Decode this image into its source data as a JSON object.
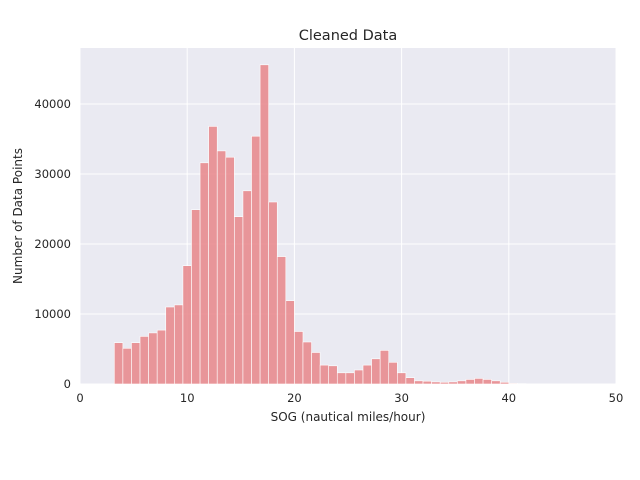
{
  "chart_data": {
    "type": "bar",
    "title": "Cleaned Data",
    "xlabel": "SOG (nautical miles/hour)",
    "ylabel": "Number of Data Points",
    "xlim": [
      0,
      50
    ],
    "ylim": [
      0,
      48000
    ],
    "xticks": [
      0,
      10,
      20,
      30,
      40,
      50
    ],
    "yticks": [
      0,
      10000,
      20000,
      30000,
      40000
    ],
    "grid": true,
    "colors": {
      "bar": "#e8868a",
      "background": "#eaeaf2",
      "grid": "#ffffff",
      "text": "#262626"
    },
    "bin_width": 0.8,
    "bins_start": [
      3.2,
      4.0,
      4.8,
      5.6,
      6.4,
      7.2,
      8.0,
      8.8,
      9.6,
      10.4,
      11.2,
      12.0,
      12.8,
      13.6,
      14.4,
      15.2,
      16.0,
      16.8,
      17.6,
      18.4,
      19.2,
      20.0,
      20.8,
      21.6,
      22.4,
      23.2,
      24.0,
      24.8,
      25.6,
      26.4,
      27.2,
      28.0,
      28.8,
      29.6,
      30.4,
      31.2,
      32.0,
      32.8,
      33.6,
      34.4,
      35.2,
      36.0,
      36.8,
      37.6,
      38.4,
      39.2,
      40.0,
      40.8
    ],
    "values": [
      5900,
      5100,
      5900,
      6800,
      7300,
      7700,
      11000,
      11300,
      16900,
      24900,
      31600,
      36800,
      33300,
      32400,
      23900,
      27600,
      35400,
      45600,
      26000,
      18200,
      11900,
      7500,
      6000,
      4500,
      2700,
      2600,
      1600,
      1600,
      2000,
      2700,
      3600,
      4800,
      3100,
      1600,
      900,
      450,
      400,
      300,
      250,
      300,
      450,
      650,
      800,
      650,
      450,
      250,
      100,
      50
    ]
  }
}
